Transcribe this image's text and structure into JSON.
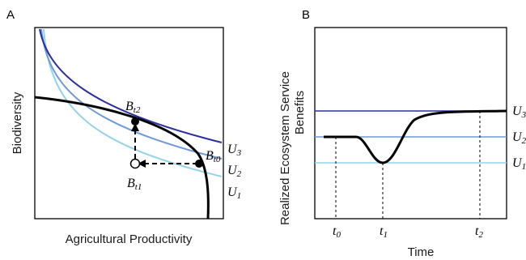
{
  "panel_a": {
    "letter": "A",
    "xlabel": "Agricultural Productivity",
    "ylabel": "Biodiversity",
    "curves": [
      {
        "main": "U",
        "sub": "3",
        "color": "#2b2f9e"
      },
      {
        "main": "U",
        "sub": "2",
        "color": "#6f9ad8"
      },
      {
        "main": "U",
        "sub": "1",
        "color": "#93d3ea"
      }
    ],
    "points": [
      {
        "main": "B",
        "sub": "t2"
      },
      {
        "main": "B",
        "sub": "t0"
      },
      {
        "main": "B",
        "sub": "t1"
      }
    ]
  },
  "panel_b": {
    "letter": "B",
    "ylabel_line1": "Realized Ecosystem Service",
    "ylabel_line2": "Benefits",
    "xlabel": "Time",
    "levels": [
      {
        "main": "U",
        "sub": "3",
        "color": "#2b2f9e"
      },
      {
        "main": "U",
        "sub": "2",
        "color": "#6f9ad8"
      },
      {
        "main": "U",
        "sub": "1",
        "color": "#93d3ea"
      }
    ],
    "ticks": [
      {
        "main": "t",
        "sub": "0"
      },
      {
        "main": "t",
        "sub": "1"
      },
      {
        "main": "t",
        "sub": "2"
      }
    ]
  }
}
